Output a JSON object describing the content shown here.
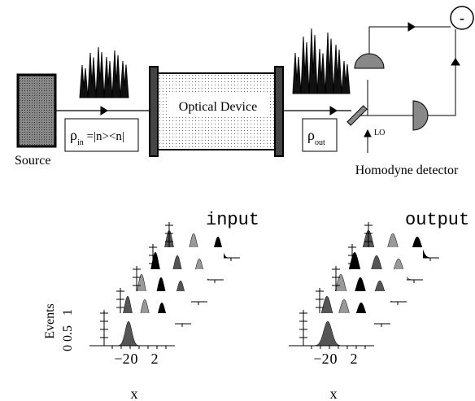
{
  "setup": {
    "source": "Source",
    "input_state": {
      "symbol": "ρ",
      "subscript": "in",
      "expression": " =|n><n|"
    },
    "device": "Optical Device",
    "output_state": {
      "symbol": "ρ",
      "subscript": "out"
    },
    "local_oscillator": "LO",
    "difference": "-",
    "detector": "Homodyne detector"
  },
  "plots": [
    {
      "title": "input",
      "y_label": "Events",
      "y_ticks": [
        "0",
        "0.5",
        "1"
      ],
      "x_ticks": [
        "−2",
        "0",
        "2"
      ],
      "x_label": "x"
    },
    {
      "title": "output",
      "x_ticks": [
        "−2",
        "0",
        "2"
      ],
      "x_label": "x"
    }
  ]
}
